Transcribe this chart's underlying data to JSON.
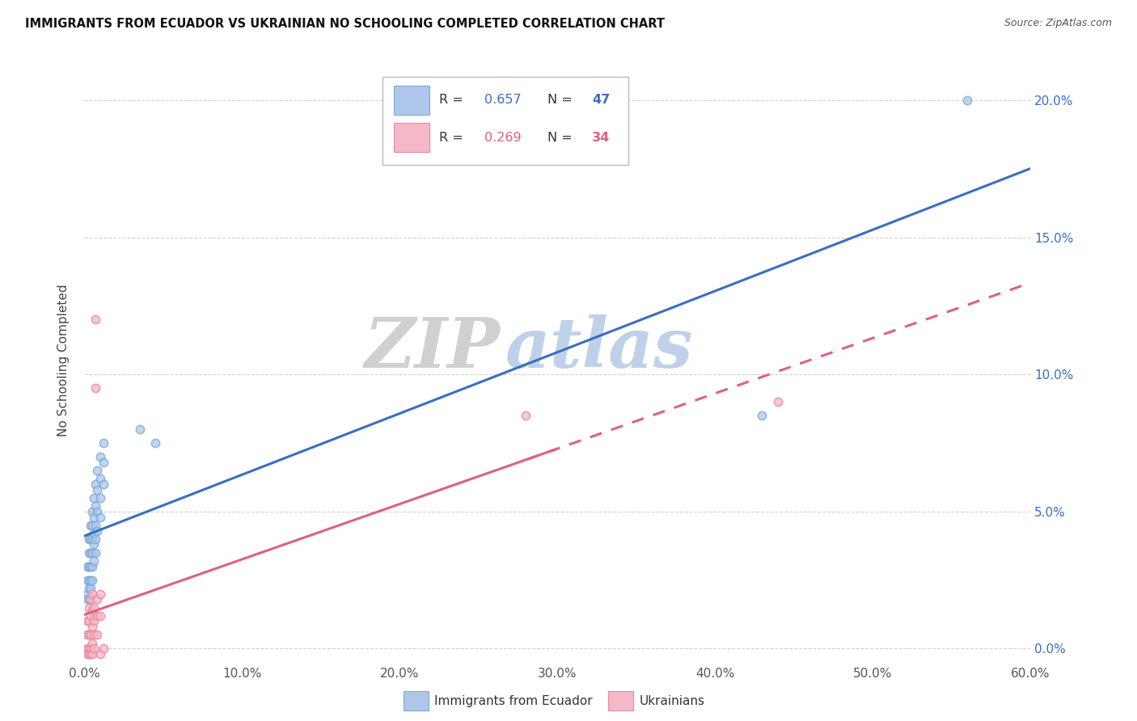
{
  "title": "IMMIGRANTS FROM ECUADOR VS UKRAINIAN NO SCHOOLING COMPLETED CORRELATION CHART",
  "source": "Source: ZipAtlas.com",
  "xlabel_ticks": [
    "0.0%",
    "10.0%",
    "20.0%",
    "30.0%",
    "40.0%",
    "50.0%",
    "60.0%"
  ],
  "ylabel_ticks": [
    "0.0%",
    "5.0%",
    "10.0%",
    "15.0%",
    "20.0%"
  ],
  "ylabel": "No Schooling Completed",
  "legend_entries": [
    {
      "label": "Immigrants from Ecuador",
      "color": "#92b4e8",
      "R": "0.657",
      "N": "47"
    },
    {
      "label": "Ukrainians",
      "color": "#f4a0b0",
      "R": "0.269",
      "N": "34"
    }
  ],
  "watermark_zip": "ZIP",
  "watermark_atlas": "atlas",
  "xlim": [
    0,
    0.6
  ],
  "ylim": [
    -0.005,
    0.215
  ],
  "ecuador_scatter": [
    [
      0.002,
      0.03
    ],
    [
      0.002,
      0.025
    ],
    [
      0.002,
      0.02
    ],
    [
      0.002,
      0.018
    ],
    [
      0.003,
      0.04
    ],
    [
      0.003,
      0.035
    ],
    [
      0.003,
      0.03
    ],
    [
      0.003,
      0.025
    ],
    [
      0.003,
      0.022
    ],
    [
      0.003,
      0.018
    ],
    [
      0.004,
      0.045
    ],
    [
      0.004,
      0.04
    ],
    [
      0.004,
      0.035
    ],
    [
      0.004,
      0.03
    ],
    [
      0.004,
      0.025
    ],
    [
      0.004,
      0.022
    ],
    [
      0.005,
      0.05
    ],
    [
      0.005,
      0.045
    ],
    [
      0.005,
      0.04
    ],
    [
      0.005,
      0.035
    ],
    [
      0.005,
      0.03
    ],
    [
      0.005,
      0.025
    ],
    [
      0.006,
      0.055
    ],
    [
      0.006,
      0.048
    ],
    [
      0.006,
      0.042
    ],
    [
      0.006,
      0.038
    ],
    [
      0.006,
      0.032
    ],
    [
      0.007,
      0.06
    ],
    [
      0.007,
      0.052
    ],
    [
      0.007,
      0.045
    ],
    [
      0.007,
      0.04
    ],
    [
      0.007,
      0.035
    ],
    [
      0.008,
      0.065
    ],
    [
      0.008,
      0.058
    ],
    [
      0.008,
      0.05
    ],
    [
      0.008,
      0.043
    ],
    [
      0.01,
      0.07
    ],
    [
      0.01,
      0.062
    ],
    [
      0.01,
      0.055
    ],
    [
      0.01,
      0.048
    ],
    [
      0.012,
      0.075
    ],
    [
      0.012,
      0.068
    ],
    [
      0.012,
      0.06
    ],
    [
      0.035,
      0.08
    ],
    [
      0.045,
      0.075
    ],
    [
      0.43,
      0.085
    ],
    [
      0.56,
      0.2
    ]
  ],
  "ukrainian_scatter": [
    [
      0.002,
      0.01
    ],
    [
      0.002,
      0.005
    ],
    [
      0.002,
      0.0
    ],
    [
      0.002,
      -0.002
    ],
    [
      0.003,
      0.015
    ],
    [
      0.003,
      0.01
    ],
    [
      0.003,
      0.005
    ],
    [
      0.003,
      0.0
    ],
    [
      0.003,
      -0.002
    ],
    [
      0.004,
      0.018
    ],
    [
      0.004,
      0.012
    ],
    [
      0.004,
      0.005
    ],
    [
      0.004,
      0.0
    ],
    [
      0.004,
      -0.002
    ],
    [
      0.005,
      0.02
    ],
    [
      0.005,
      0.014
    ],
    [
      0.005,
      0.008
    ],
    [
      0.005,
      0.002
    ],
    [
      0.005,
      -0.002
    ],
    [
      0.006,
      0.015
    ],
    [
      0.006,
      0.01
    ],
    [
      0.006,
      0.005
    ],
    [
      0.006,
      0.0
    ],
    [
      0.007,
      0.12
    ],
    [
      0.007,
      0.095
    ],
    [
      0.008,
      0.018
    ],
    [
      0.008,
      0.012
    ],
    [
      0.008,
      0.005
    ],
    [
      0.01,
      0.02
    ],
    [
      0.01,
      0.012
    ],
    [
      0.01,
      -0.002
    ],
    [
      0.012,
      0.0
    ],
    [
      0.28,
      0.085
    ],
    [
      0.44,
      0.09
    ]
  ],
  "ecuador_line_color": "#3a6ec4",
  "ukrainian_line_color": "#e06080",
  "scatter_ecuador_facecolor": "#aec6ea",
  "scatter_ecuador_edgecolor": "#7aaad8",
  "scatter_ukrainian_facecolor": "#f5b8c8",
  "scatter_ukrainian_edgecolor": "#e888a0",
  "scatter_size": 55,
  "line_width": 2.2,
  "background_color": "#ffffff",
  "grid_color": "#cccccc",
  "right_tick_color": "#3a6ec4"
}
